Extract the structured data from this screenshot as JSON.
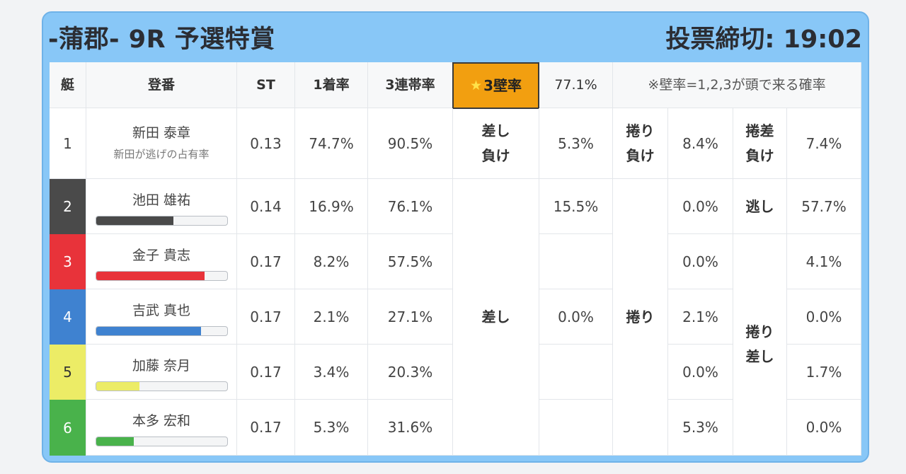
{
  "header": {
    "race_title": "-蒲郡- 9R 予選特賞",
    "deadline_label": "投票締切:",
    "deadline_time": "19:02"
  },
  "columns": {
    "boat": "艇",
    "player": "登番",
    "st": "ST",
    "win_rate": "1着率",
    "top3_rate": "3連帯率",
    "wall_label": "3壁率",
    "wall_value": "77.1%",
    "wall_note": "※壁率=1,2,3が頭で来る確率"
  },
  "row1": {
    "boat": "1",
    "name": "新田 泰章",
    "sub": "新田が逃げの占有率",
    "st": "0.13",
    "win": "74.7%",
    "top3": "90.5%",
    "k1_label": "差し\n負け",
    "k1_value": "5.3%",
    "k2_label": "捲り\n負け",
    "k2_value": "8.4%",
    "k3_label": "捲差\n負け",
    "k3_value": "7.4%"
  },
  "lanes": [
    {
      "boat": "2",
      "name": "池田 雄祐",
      "st": "0.14",
      "win": "16.9%",
      "top3": "76.1%",
      "bar": 0.59,
      "color": "#4a4a4a"
    },
    {
      "boat": "3",
      "name": "金子 貴志",
      "st": "0.17",
      "win": "8.2%",
      "top3": "57.5%",
      "bar": 0.83,
      "color": "#e8333a"
    },
    {
      "boat": "4",
      "name": "吉武 真也",
      "st": "0.17",
      "win": "2.1%",
      "top3": "27.1%",
      "bar": 0.8,
      "color": "#3f82d0"
    },
    {
      "boat": "5",
      "name": "加藤 奈月",
      "st": "0.17",
      "win": "3.4%",
      "top3": "20.3%",
      "bar": 0.33,
      "color": "#ecec66"
    },
    {
      "boat": "6",
      "name": "本多 宏和",
      "st": "0.17",
      "win": "5.3%",
      "top3": "31.6%",
      "bar": 0.29,
      "color": "#49b24b"
    }
  ],
  "kimarite": {
    "sashi_label": "差し",
    "sashi_2": "15.5%",
    "sashi_4": "0.0%",
    "makuri_label": "捲り",
    "makuri_2": "0.0%",
    "makuri_3": "0.0%",
    "makuri_4": "2.1%",
    "makuri_5": "0.0%",
    "makuri_6": "5.3%",
    "nige_label": "逃し",
    "nige_value": "57.7%",
    "makurizashi_label": "捲り\n差し",
    "makurizashi_3": "4.1%",
    "makurizashi_4": "0.0%",
    "makurizashi_5": "1.7%",
    "makurizashi_6": "0.0%"
  }
}
